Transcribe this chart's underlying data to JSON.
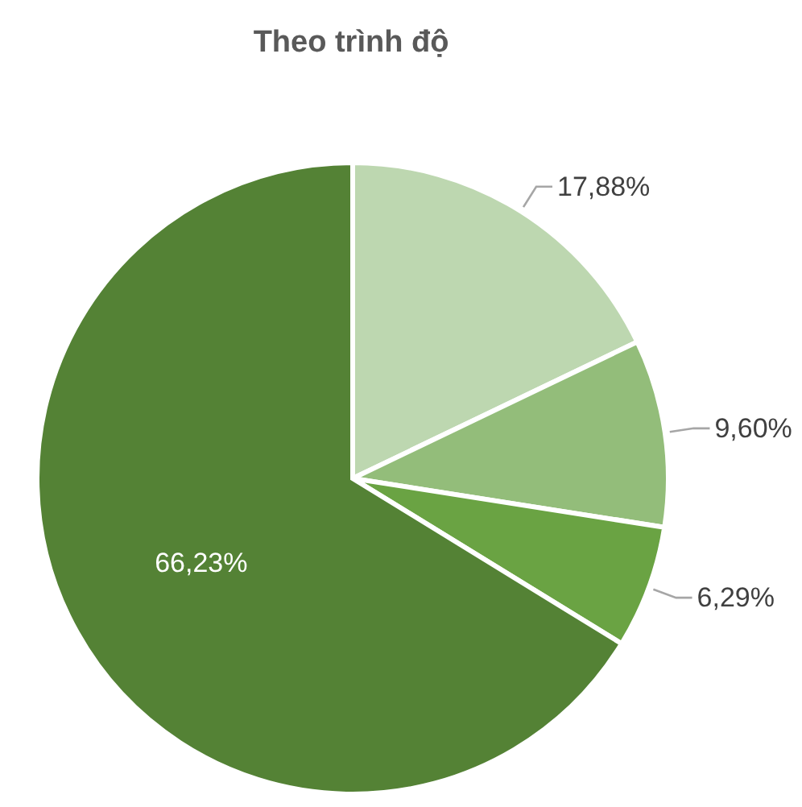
{
  "chart_data": {
    "type": "pie",
    "title": "Theo trình độ",
    "categories": [
      null,
      null,
      null,
      null
    ],
    "values": [
      17.88,
      9.6,
      6.29,
      66.23
    ],
    "colors": [
      "#bdd7b0",
      "#93bd7a",
      "#6aa343",
      "#548235"
    ],
    "value_labels": [
      "17,88%",
      "9,60%",
      "6,29%",
      "66,23%"
    ]
  }
}
